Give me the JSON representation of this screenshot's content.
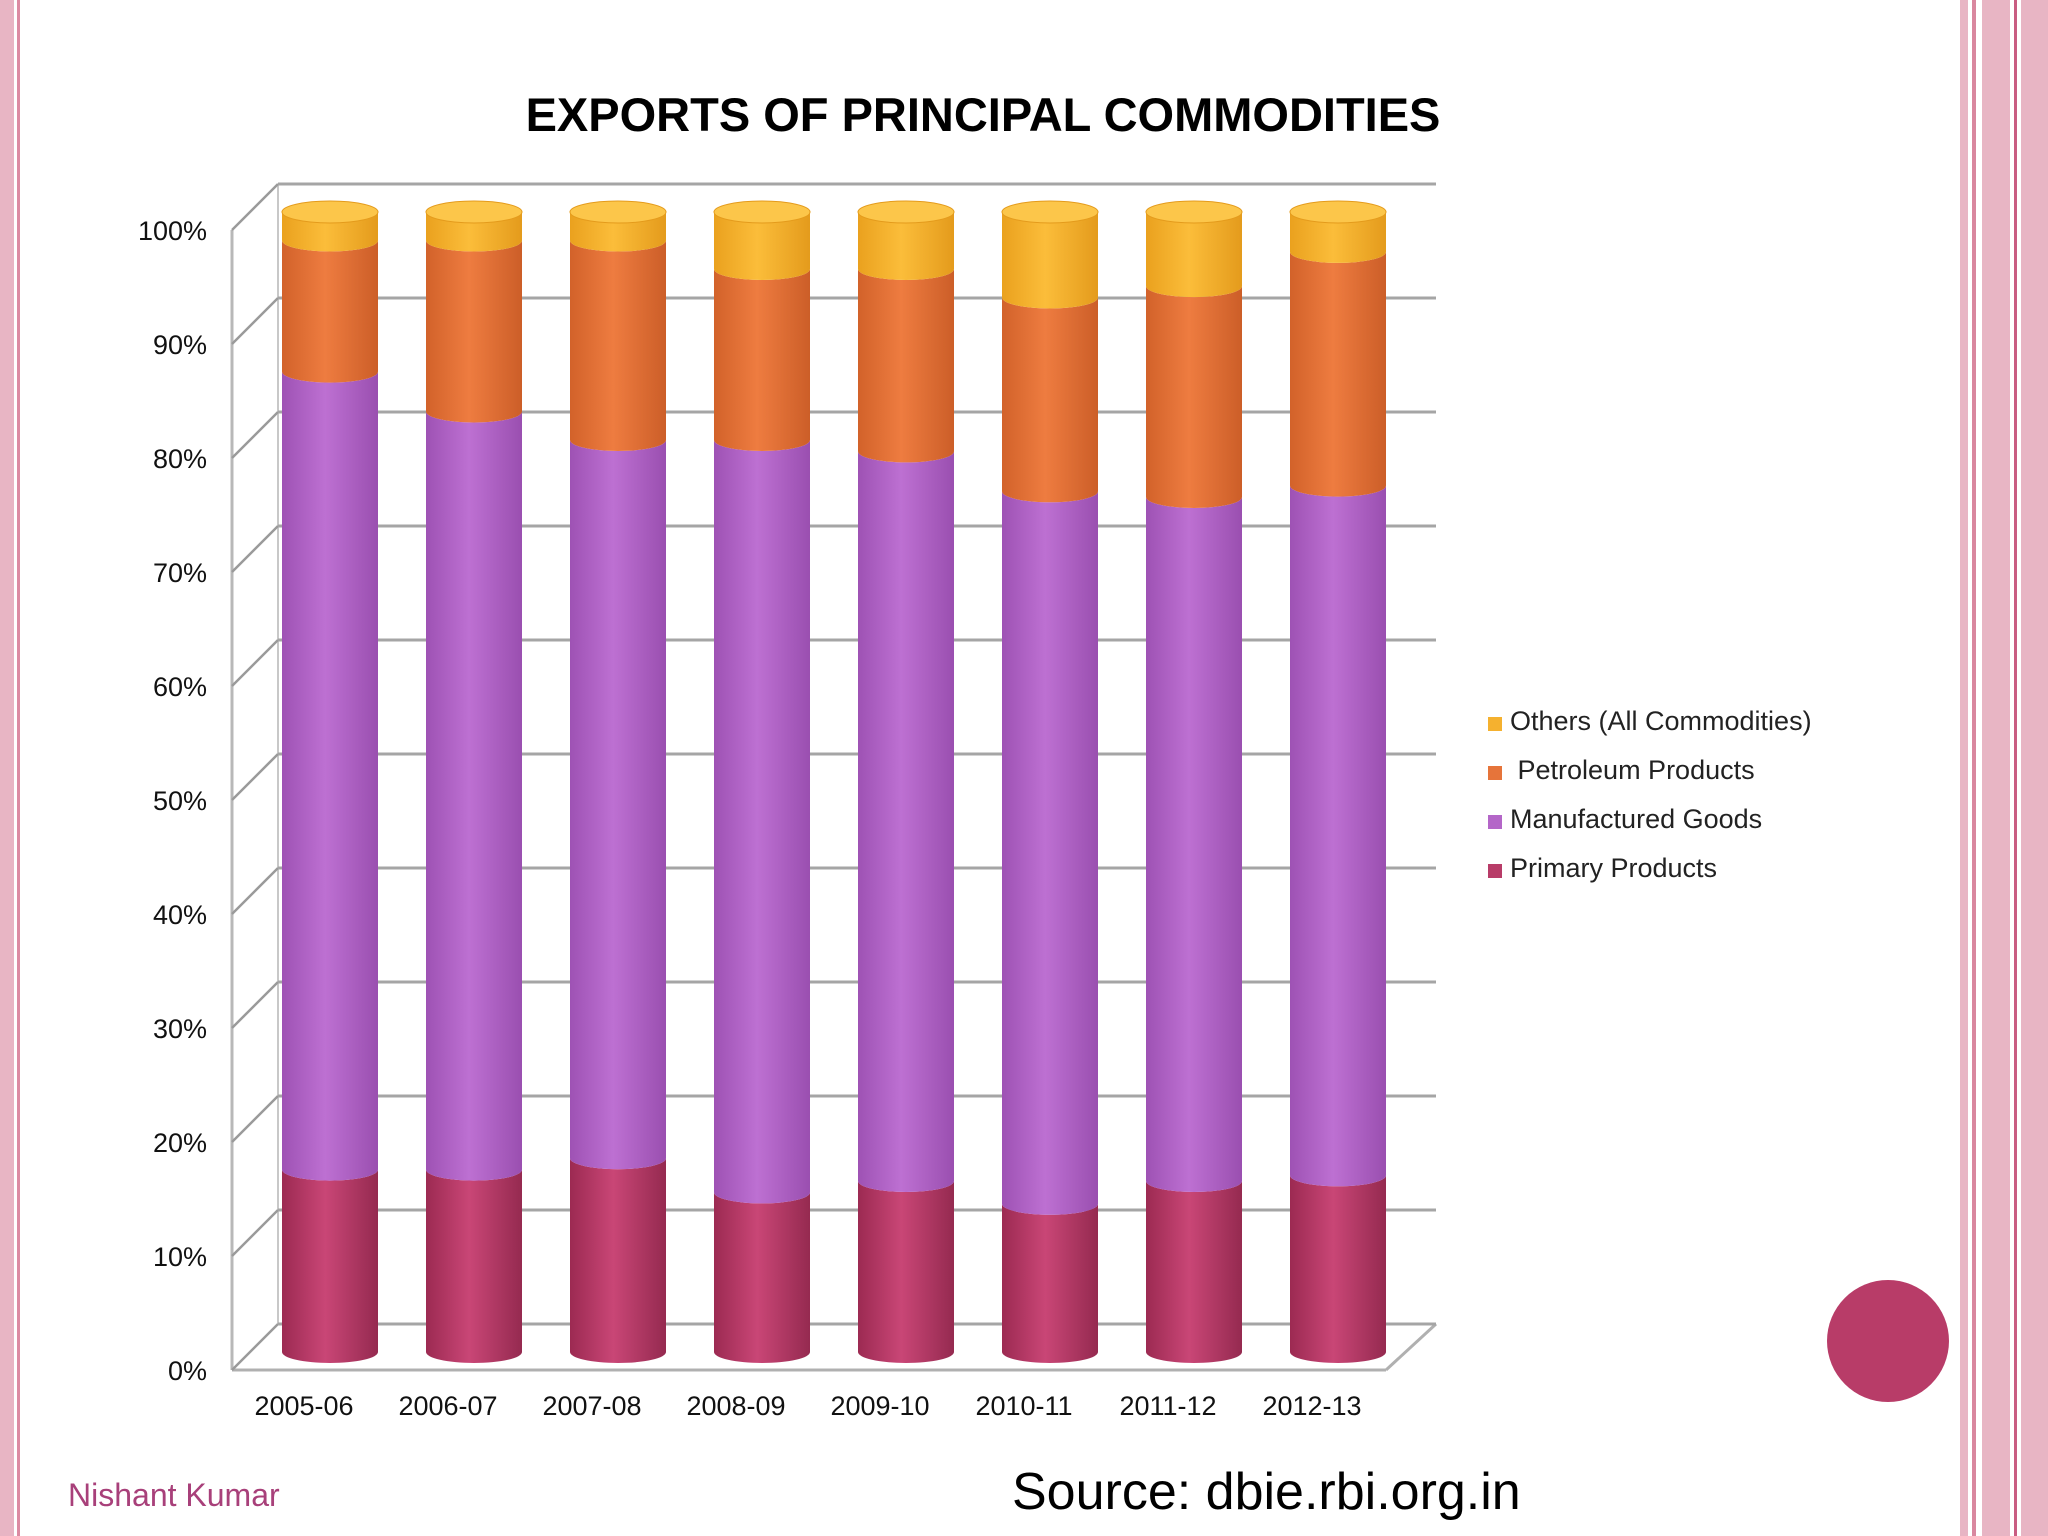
{
  "slide": {
    "author": "Nishant Kumar",
    "source": "Source: dbie.rbi.org.in"
  },
  "colors": {
    "primary": "#b83c68",
    "manufactured": "#b466c8",
    "petroleum": "#e6743a",
    "others": "#f5b12f",
    "accent_pink": "#e8b5c4"
  },
  "chart_data": {
    "type": "bar",
    "stacked": true,
    "percent": true,
    "title": "EXPORTS OF PRINCIPAL COMMODITIES",
    "categories": [
      "2005-06",
      "2006-07",
      "2007-08",
      "2008-09",
      "2009-10",
      "2010-11",
      "2011-12",
      "2012-13"
    ],
    "series": [
      {
        "name": "Primary Products",
        "values": [
          16,
          16,
          17,
          14,
          15,
          13,
          15,
          15.5
        ]
      },
      {
        "name": "Manufactured Goods",
        "values": [
          70,
          66.5,
          63,
          66,
          64,
          62.5,
          60,
          60.5
        ]
      },
      {
        "name": "Petroleum Products",
        "values": [
          11.5,
          15,
          17.5,
          15,
          16,
          17,
          18.5,
          20.5
        ]
      },
      {
        "name": "Others (All Commodities)",
        "values": [
          2.5,
          2.5,
          2.5,
          5,
          5,
          7.5,
          6.5,
          3.5
        ]
      }
    ],
    "y_ticks": [
      "0%",
      "10%",
      "20%",
      "30%",
      "40%",
      "50%",
      "60%",
      "70%",
      "80%",
      "90%",
      "100%"
    ],
    "ylim": [
      0,
      100
    ],
    "legend": [
      "Others (All Commodities)",
      " Petroleum Products",
      "Manufactured Goods",
      "Primary Products"
    ],
    "legend_position": "right",
    "grid": true
  }
}
